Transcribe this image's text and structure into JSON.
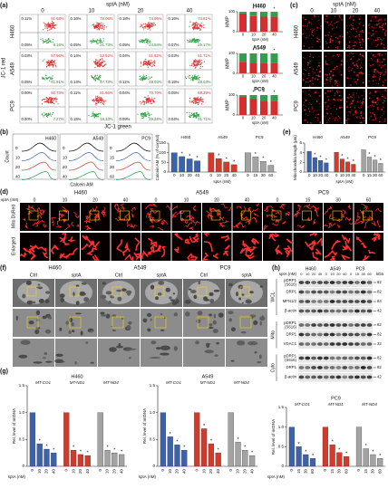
{
  "figure": {
    "a": {
      "label": "(a)",
      "header": "sptA (nM)",
      "doses": [
        "0",
        "10",
        "20",
        "40"
      ],
      "cells": [
        "H460",
        "A549",
        "PC9"
      ],
      "ylabel": "JC-1 red",
      "xlabel": "JC-1 green",
      "quadrants": [
        [
          [
            "0.11%",
            "91.68%",
            "0.05%",
            "8.16%"
          ],
          [
            "0.16%",
            "78.06%",
            "0.05%",
            "21.73%"
          ],
          [
            "0.18%",
            "74.96%",
            "0.05%",
            "24.84%"
          ],
          [
            "0.16%",
            "74.61%",
            "0.07%",
            "25.17%"
          ]
        ],
        [
          [
            "0.03%",
            "57.96%",
            "0.05%",
            "41.91%"
          ],
          [
            "0.14%",
            "52.52%",
            "0.14%",
            "47.73%"
          ],
          [
            "0.04%",
            "51.82%",
            "0.11%",
            "48.03%"
          ],
          [
            "0.03%",
            "51.71%",
            "0.15%",
            "48.03%"
          ]
        ],
        [
          [
            "0.00%",
            "92.73%",
            "0.00%",
            "7.27%"
          ],
          [
            "0.11%",
            "81.66%",
            "0.15%",
            "18.33%"
          ],
          [
            "0.04%",
            "70.70%",
            "0.09%",
            "29.26%"
          ],
          [
            "0.05%",
            "68.29%",
            "0.04%",
            "31.71%"
          ]
        ]
      ],
      "mmp": {
        "ylabel": "MMP",
        "xlabel": "sptA (nM)",
        "ylim": [
          0,
          100
        ],
        "yticks": [
          0,
          100
        ],
        "doses": [
          "0",
          "10",
          "20",
          "40"
        ],
        "significance": "*",
        "red_color": "#d32f2f",
        "green_color": "#2e9e4f",
        "charts": [
          {
            "name": "H460",
            "red": [
              91.68,
              78.06,
              74.96,
              74.61
            ],
            "green": [
              8.16,
              21.73,
              24.84,
              25.17
            ]
          },
          {
            "name": "A549",
            "red": [
              57.96,
              52.52,
              51.82,
              51.71
            ],
            "green": [
              41.91,
              47.73,
              48.03,
              48.03
            ]
          },
          {
            "name": "PC9",
            "red": [
              92.73,
              81.66,
              70.7,
              68.29
            ],
            "green": [
              7.27,
              18.33,
              29.26,
              31.71
            ]
          }
        ]
      }
    },
    "c": {
      "label": "(c)",
      "header": "sptA (nM)",
      "doses": [
        "0",
        "10",
        "20",
        "40"
      ],
      "cells": [
        "H460",
        "A549",
        "PC9"
      ]
    },
    "b": {
      "label": "(b)",
      "xlabel_hist": "Calcein AM",
      "ylabel_hist": "Count",
      "histograms": [
        {
          "name": "H460",
          "doses": [
            "0",
            "10",
            "20",
            "40"
          ]
        },
        {
          "name": "A549",
          "doses": [
            "0",
            "10",
            "20",
            "40"
          ]
        },
        {
          "name": "PC9",
          "doses": [
            "0",
            "15",
            "30",
            "60"
          ]
        }
      ],
      "bars": {
        "ylabel": "Calcein AM (% of control)",
        "xlabel": "sptA (nM)",
        "ylim": [
          0,
          150
        ],
        "yticks": [
          0,
          50,
          100,
          150
        ],
        "significance": "*",
        "groups": [
          {
            "name": "H460",
            "color": "#3b62ad",
            "doses": [
              "0",
              "10",
              "20",
              "40"
            ],
            "values": [
              100,
              80,
              68,
              58
            ]
          },
          {
            "name": "A549",
            "color": "#d33a2c",
            "doses": [
              "0",
              "10",
              "20",
              "40"
            ],
            "values": [
              100,
              70,
              52,
              38
            ]
          },
          {
            "name": "PC9",
            "color": "#a3a3a3",
            "doses": [
              "0",
              "15",
              "30",
              "60"
            ],
            "values": [
              100,
              78,
              55,
              35
            ]
          }
        ]
      }
    },
    "e": {
      "label": "(e)",
      "ylabel": "Mitochondria length (μm)",
      "xlabel": "sptA (nM)",
      "ylim": [
        0,
        6
      ],
      "yticks": [
        0,
        2,
        4,
        6
      ],
      "significance": "*",
      "groups": [
        {
          "name": "H460",
          "color": "#3b62ad",
          "doses": [
            "0",
            "10",
            "20",
            "40"
          ],
          "values": [
            4.3,
            3.0,
            2.4,
            1.9
          ]
        },
        {
          "name": "A549",
          "color": "#d33a2c",
          "doses": [
            "0",
            "10",
            "20",
            "40"
          ],
          "values": [
            4.1,
            2.7,
            2.1,
            1.6
          ]
        },
        {
          "name": "PC9",
          "color": "#a3a3a3",
          "doses": [
            "0",
            "15",
            "30",
            "60"
          ],
          "values": [
            4.6,
            3.1,
            2.5,
            1.8
          ]
        }
      ]
    },
    "d": {
      "label": "(d)",
      "header": "sptA (nM)",
      "rows": [
        "Mito DsRed",
        "Enlarged"
      ],
      "cells": [
        {
          "name": "H460",
          "doses": [
            "0",
            "10",
            "20",
            "40"
          ]
        },
        {
          "name": "A549",
          "doses": [
            "0",
            "10",
            "20",
            "40"
          ]
        },
        {
          "name": "PC9",
          "doses": [
            "0",
            "15",
            "30",
            "60"
          ]
        }
      ]
    },
    "f": {
      "label": "(f)",
      "cells": [
        "H460",
        "A549",
        "PC9"
      ],
      "conditions": [
        "Ctrl",
        "sptA"
      ]
    },
    "h": {
      "label": "(h)",
      "header": "sptA (nM)",
      "unit": "kDa",
      "cells": [
        {
          "name": "H460",
          "doses": [
            "0",
            "10",
            "20",
            "40"
          ]
        },
        {
          "name": "A549",
          "doses": [
            "0",
            "10",
            "20",
            "40"
          ]
        },
        {
          "name": "PC9",
          "doses": [
            "0",
            "15",
            "30",
            "60"
          ]
        }
      ],
      "sections": [
        {
          "name": "WCL",
          "rows": [
            {
              "label": [
                "pDRP1",
                "(S616)"
              ],
              "kda": 82
            },
            {
              "label": [
                "DRP1"
              ],
              "kda": 82
            },
            {
              "label": [
                "MFN1/2"
              ],
              "kda": 84
            },
            {
              "label": [
                "β-actin"
              ],
              "kda": 42
            }
          ]
        },
        {
          "name": "Mito",
          "rows": [
            {
              "label": [
                "pDRP1",
                "(S616)"
              ],
              "kda": 82
            },
            {
              "label": [
                "DRP1"
              ],
              "kda": 82
            },
            {
              "label": [
                "VDAC1"
              ],
              "kda": 32
            }
          ]
        },
        {
          "name": "Cyto",
          "rows": [
            {
              "label": [
                "pDRP1",
                "(S616)"
              ],
              "kda": 82
            },
            {
              "label": [
                "DRP1"
              ],
              "kda": 82
            },
            {
              "label": [
                "β-actin"
              ],
              "kda": 42
            }
          ]
        }
      ]
    },
    "g": {
      "label": "(g)",
      "ylabel": "Rel. level of mtDNA",
      "xlabel": "sptA (nM)",
      "ylim": [
        0,
        1.5
      ],
      "yticks": [
        0,
        0.5,
        {
          "value": 1,
          "label": "1.0"
        },
        1.5
      ],
      "significance": "*",
      "charts": [
        {
          "title": "H460",
          "groups": [
            {
              "name": "MT-CO1",
              "color": "#3b62ad",
              "doses": [
                "0",
                "10",
                "20",
                "40"
              ],
              "values": [
                1,
                0.42,
                0.32,
                0.25
              ]
            },
            {
              "name": "MT-ND1",
              "color": "#d33a2c",
              "doses": [
                "0",
                "10",
                "20",
                "40"
              ],
              "values": [
                1,
                0.3,
                0.22,
                0.2
              ]
            },
            {
              "name": "MT-ND4",
              "color": "#a3a3a3",
              "doses": [
                "0",
                "10",
                "20",
                "40"
              ],
              "values": [
                1,
                0.3,
                0.25,
                0.22
              ]
            }
          ]
        },
        {
          "title": "A549",
          "groups": [
            {
              "name": "MT-CO1",
              "color": "#3b62ad",
              "doses": [
                "0",
                "10",
                "20",
                "40"
              ],
              "values": [
                1,
                0.55,
                0.4,
                0.3
              ]
            },
            {
              "name": "MT-ND1",
              "color": "#d33a2c",
              "doses": [
                "0",
                "10",
                "20",
                "40"
              ],
              "values": [
                1,
                0.7,
                0.42,
                0.25
              ]
            },
            {
              "name": "MT-ND4",
              "color": "#a3a3a3",
              "doses": [
                "0",
                "10",
                "20",
                "40"
              ],
              "values": [
                1,
                0.45,
                0.3,
                0.2
              ]
            }
          ]
        },
        {
          "title": "PC9",
          "groups": [
            {
              "name": "MT-CO1",
              "color": "#3b62ad",
              "doses": [
                "0",
                "15",
                "30",
                "60"
              ],
              "values": [
                1,
                0.5,
                0.3,
                0.2
              ]
            },
            {
              "name": "MT-ND1",
              "color": "#d33a2c",
              "doses": [
                "0",
                "15",
                "30",
                "60"
              ],
              "values": [
                1,
                0.55,
                0.35,
                0.25
              ]
            },
            {
              "name": "MT-ND4",
              "color": "#a3a3a3",
              "doses": [
                "0",
                "15",
                "30",
                "60"
              ],
              "values": [
                1,
                0.45,
                0.3,
                0.2
              ]
            }
          ]
        }
      ]
    }
  }
}
